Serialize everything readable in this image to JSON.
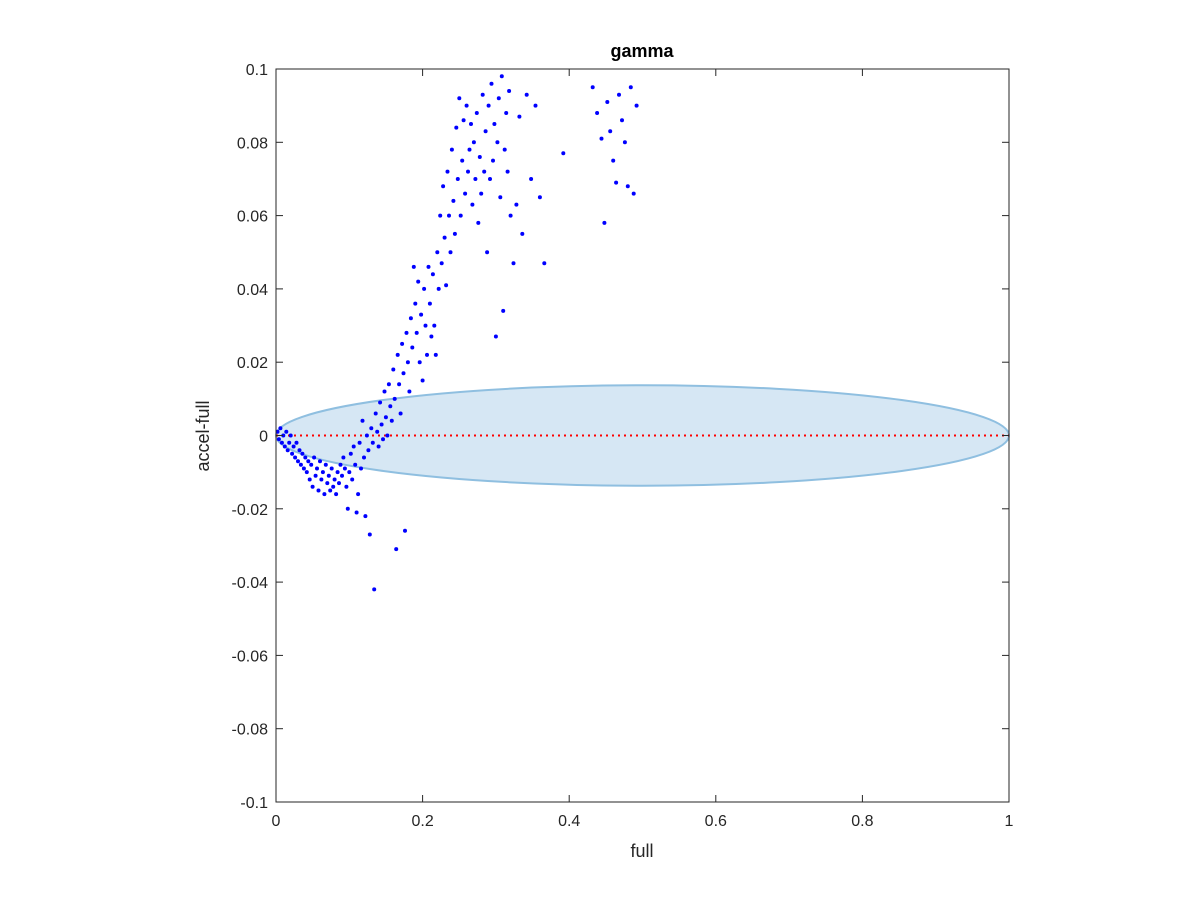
{
  "chart_data": {
    "type": "scatter",
    "title": "gamma",
    "xlabel": "full",
    "ylabel": "accel-full",
    "xlim": [
      0,
      1
    ],
    "ylim": [
      -0.1,
      0.1
    ],
    "x_ticks": [
      "0",
      "0.2",
      "0.4",
      "0.6",
      "0.8",
      "1"
    ],
    "y_ticks": [
      "-0.1",
      "-0.08",
      "-0.06",
      "-0.04",
      "-0.02",
      "0",
      "0.02",
      "0.04",
      "0.06",
      "0.08",
      "0.1"
    ],
    "grid": false,
    "reference_line": {
      "y": 0,
      "style": "dotted",
      "color": "#ff0000"
    },
    "ellipse": {
      "center": [
        0.5,
        0
      ],
      "semi_axis_x": 0.5,
      "semi_axis_y": 0.0137,
      "fill": "#d6e7f4",
      "stroke": "#8fbfe0"
    },
    "marker_color": "#0000ff",
    "points": [
      [
        0.002,
        0.001
      ],
      [
        0.004,
        -0.001
      ],
      [
        0.006,
        0.002
      ],
      [
        0.008,
        -0.002
      ],
      [
        0.01,
        0.0
      ],
      [
        0.012,
        -0.003
      ],
      [
        0.014,
        0.001
      ],
      [
        0.016,
        -0.004
      ],
      [
        0.018,
        -0.002
      ],
      [
        0.02,
        0.0
      ],
      [
        0.022,
        -0.005
      ],
      [
        0.024,
        -0.003
      ],
      [
        0.026,
        -0.006
      ],
      [
        0.028,
        -0.002
      ],
      [
        0.03,
        -0.007
      ],
      [
        0.032,
        -0.004
      ],
      [
        0.034,
        -0.008
      ],
      [
        0.036,
        -0.005
      ],
      [
        0.038,
        -0.009
      ],
      [
        0.04,
        -0.006
      ],
      [
        0.042,
        -0.01
      ],
      [
        0.044,
        -0.007
      ],
      [
        0.046,
        -0.012
      ],
      [
        0.048,
        -0.008
      ],
      [
        0.05,
        -0.014
      ],
      [
        0.052,
        -0.006
      ],
      [
        0.054,
        -0.011
      ],
      [
        0.056,
        -0.009
      ],
      [
        0.058,
        -0.015
      ],
      [
        0.06,
        -0.007
      ],
      [
        0.062,
        -0.012
      ],
      [
        0.064,
        -0.01
      ],
      [
        0.066,
        -0.016
      ],
      [
        0.068,
        -0.008
      ],
      [
        0.07,
        -0.013
      ],
      [
        0.072,
        -0.011
      ],
      [
        0.074,
        -0.015
      ],
      [
        0.076,
        -0.009
      ],
      [
        0.078,
        -0.014
      ],
      [
        0.08,
        -0.012
      ],
      [
        0.082,
        -0.016
      ],
      [
        0.084,
        -0.01
      ],
      [
        0.086,
        -0.013
      ],
      [
        0.088,
        -0.008
      ],
      [
        0.09,
        -0.011
      ],
      [
        0.092,
        -0.006
      ],
      [
        0.094,
        -0.009
      ],
      [
        0.096,
        -0.014
      ],
      [
        0.098,
        -0.02
      ],
      [
        0.1,
        -0.01
      ],
      [
        0.102,
        -0.005
      ],
      [
        0.104,
        -0.012
      ],
      [
        0.106,
        -0.003
      ],
      [
        0.108,
        -0.008
      ],
      [
        0.11,
        -0.021
      ],
      [
        0.112,
        -0.016
      ],
      [
        0.114,
        -0.002
      ],
      [
        0.116,
        -0.009
      ],
      [
        0.118,
        0.004
      ],
      [
        0.12,
        -0.006
      ],
      [
        0.122,
        -0.022
      ],
      [
        0.124,
        0.0
      ],
      [
        0.126,
        -0.004
      ],
      [
        0.128,
        -0.027
      ],
      [
        0.13,
        0.002
      ],
      [
        0.132,
        -0.002
      ],
      [
        0.134,
        -0.042
      ],
      [
        0.136,
        0.006
      ],
      [
        0.138,
        0.001
      ],
      [
        0.14,
        -0.003
      ],
      [
        0.142,
        0.009
      ],
      [
        0.144,
        0.003
      ],
      [
        0.146,
        -0.001
      ],
      [
        0.148,
        0.012
      ],
      [
        0.15,
        0.005
      ],
      [
        0.152,
        0.0
      ],
      [
        0.154,
        0.014
      ],
      [
        0.156,
        0.008
      ],
      [
        0.158,
        0.004
      ],
      [
        0.16,
        0.018
      ],
      [
        0.162,
        0.01
      ],
      [
        0.164,
        -0.031
      ],
      [
        0.166,
        0.022
      ],
      [
        0.168,
        0.014
      ],
      [
        0.17,
        0.006
      ],
      [
        0.172,
        0.025
      ],
      [
        0.174,
        0.017
      ],
      [
        0.176,
        -0.026
      ],
      [
        0.178,
        0.028
      ],
      [
        0.18,
        0.02
      ],
      [
        0.182,
        0.012
      ],
      [
        0.184,
        0.032
      ],
      [
        0.186,
        0.024
      ],
      [
        0.188,
        0.046
      ],
      [
        0.19,
        0.036
      ],
      [
        0.192,
        0.028
      ],
      [
        0.194,
        0.042
      ],
      [
        0.196,
        0.02
      ],
      [
        0.198,
        0.033
      ],
      [
        0.2,
        0.015
      ],
      [
        0.202,
        0.04
      ],
      [
        0.204,
        0.03
      ],
      [
        0.206,
        0.022
      ],
      [
        0.208,
        0.046
      ],
      [
        0.21,
        0.036
      ],
      [
        0.212,
        0.027
      ],
      [
        0.214,
        0.044
      ],
      [
        0.216,
        0.03
      ],
      [
        0.218,
        0.022
      ],
      [
        0.22,
        0.05
      ],
      [
        0.222,
        0.04
      ],
      [
        0.224,
        0.06
      ],
      [
        0.226,
        0.047
      ],
      [
        0.228,
        0.068
      ],
      [
        0.23,
        0.054
      ],
      [
        0.232,
        0.041
      ],
      [
        0.234,
        0.072
      ],
      [
        0.236,
        0.06
      ],
      [
        0.238,
        0.05
      ],
      [
        0.24,
        0.078
      ],
      [
        0.242,
        0.064
      ],
      [
        0.244,
        0.055
      ],
      [
        0.246,
        0.084
      ],
      [
        0.248,
        0.07
      ],
      [
        0.25,
        0.092
      ],
      [
        0.252,
        0.06
      ],
      [
        0.254,
        0.075
      ],
      [
        0.256,
        0.086
      ],
      [
        0.258,
        0.066
      ],
      [
        0.26,
        0.09
      ],
      [
        0.262,
        0.072
      ],
      [
        0.264,
        0.078
      ],
      [
        0.266,
        0.085
      ],
      [
        0.268,
        0.063
      ],
      [
        0.27,
        0.08
      ],
      [
        0.272,
        0.07
      ],
      [
        0.274,
        0.088
      ],
      [
        0.276,
        0.058
      ],
      [
        0.278,
        0.076
      ],
      [
        0.28,
        0.066
      ],
      [
        0.282,
        0.093
      ],
      [
        0.284,
        0.072
      ],
      [
        0.286,
        0.083
      ],
      [
        0.288,
        0.05
      ],
      [
        0.29,
        0.09
      ],
      [
        0.292,
        0.07
      ],
      [
        0.294,
        0.096
      ],
      [
        0.296,
        0.075
      ],
      [
        0.298,
        0.085
      ],
      [
        0.3,
        0.027
      ],
      [
        0.302,
        0.08
      ],
      [
        0.304,
        0.092
      ],
      [
        0.306,
        0.065
      ],
      [
        0.308,
        0.098
      ],
      [
        0.31,
        0.034
      ],
      [
        0.312,
        0.078
      ],
      [
        0.314,
        0.088
      ],
      [
        0.316,
        0.072
      ],
      [
        0.318,
        0.094
      ],
      [
        0.32,
        0.06
      ],
      [
        0.324,
        0.047
      ],
      [
        0.328,
        0.063
      ],
      [
        0.332,
        0.087
      ],
      [
        0.336,
        0.055
      ],
      [
        0.342,
        0.093
      ],
      [
        0.348,
        0.07
      ],
      [
        0.354,
        0.09
      ],
      [
        0.36,
        0.065
      ],
      [
        0.366,
        0.047
      ],
      [
        0.392,
        0.077
      ],
      [
        0.432,
        0.095
      ],
      [
        0.438,
        0.088
      ],
      [
        0.444,
        0.081
      ],
      [
        0.448,
        0.058
      ],
      [
        0.452,
        0.091
      ],
      [
        0.456,
        0.083
      ],
      [
        0.46,
        0.075
      ],
      [
        0.464,
        0.069
      ],
      [
        0.468,
        0.093
      ],
      [
        0.472,
        0.086
      ],
      [
        0.476,
        0.08
      ],
      [
        0.48,
        0.068
      ],
      [
        0.484,
        0.095
      ],
      [
        0.488,
        0.066
      ],
      [
        0.492,
        0.09
      ]
    ]
  }
}
